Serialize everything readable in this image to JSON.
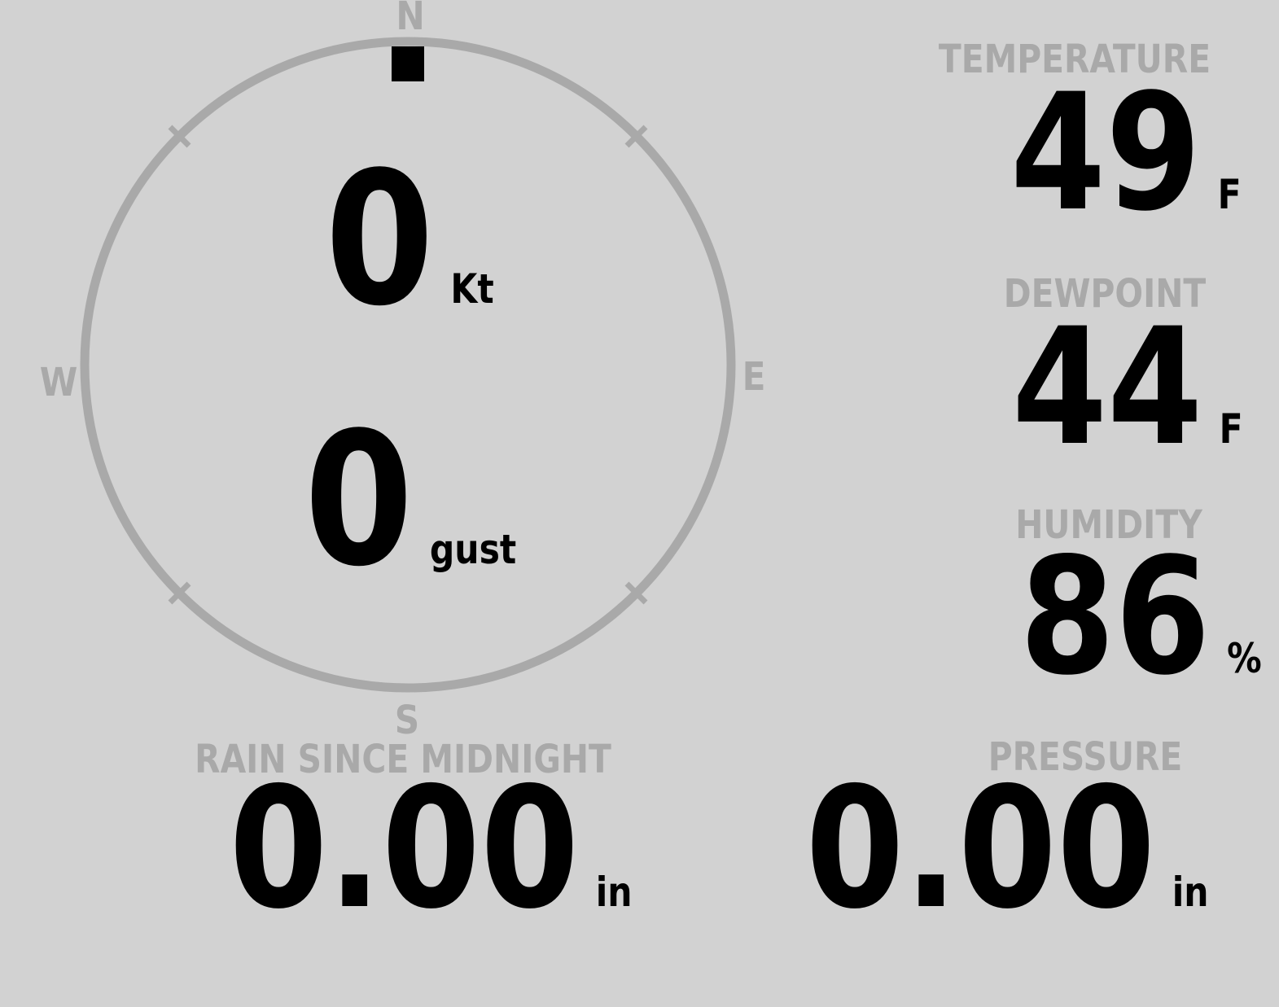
{
  "colors": {
    "background": "#d2d2d2",
    "muted": "#a9a9a9",
    "value": "#000000"
  },
  "compass": {
    "cardinals": {
      "north": "N",
      "east": "E",
      "south": "S",
      "west": "W"
    },
    "wind": {
      "speed": "0",
      "speed_unit": "Kt",
      "gust": "0",
      "gust_unit": "gust",
      "direction_deg": 0
    }
  },
  "metrics": [
    {
      "id": "temperature",
      "label": "TEMPERATURE",
      "value": "49",
      "unit": "F"
    },
    {
      "id": "dewpoint",
      "label": "DEWPOINT",
      "value": "44",
      "unit": "F"
    },
    {
      "id": "humidity",
      "label": "HUMIDITY",
      "value": "86",
      "unit": "%"
    },
    {
      "id": "rain_since_midnight",
      "label": "RAIN SINCE MIDNIGHT",
      "value": "0.00",
      "unit": "in"
    },
    {
      "id": "pressure",
      "label": "PRESSURE",
      "value": "0.00",
      "unit": "in"
    }
  ]
}
